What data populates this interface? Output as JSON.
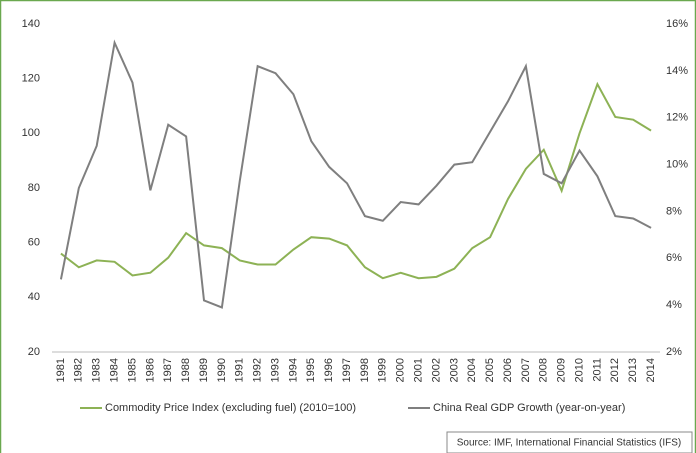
{
  "chart_data": {
    "type": "line",
    "categories": [
      "1981",
      "1982",
      "1983",
      "1984",
      "1985",
      "1986",
      "1987",
      "1988",
      "1989",
      "1990",
      "1991",
      "1992",
      "1993",
      "1994",
      "1995",
      "1996",
      "1997",
      "1998",
      "1999",
      "2000",
      "2001",
      "2002",
      "2003",
      "2004",
      "2005",
      "2006",
      "2007",
      "2008",
      "2009",
      "2010",
      "2011",
      "2012",
      "2013",
      "2014"
    ],
    "series": [
      {
        "name": "Commodity Price Index (excluding fuel) (2010=100)",
        "color": "#8db255",
        "values": [
          56,
          51,
          53.5,
          53,
          48,
          49,
          54.5,
          63.5,
          59,
          58,
          53.5,
          52,
          52,
          57.5,
          62,
          61.5,
          59,
          51,
          47,
          49,
          47,
          47.5,
          50.5,
          58,
          62,
          76,
          87,
          94,
          79,
          100,
          118,
          106,
          105,
          101
        ]
      },
      {
        "name": "China Real GDP Growth (year-on-year)",
        "color": "#7f7f7f",
        "axis": "y2",
        "values": [
          5.1,
          9.0,
          10.8,
          15.2,
          13.5,
          8.9,
          11.7,
          11.2,
          4.2,
          3.9,
          9.3,
          14.2,
          13.9,
          13.0,
          11.0,
          9.9,
          9.2,
          7.8,
          7.6,
          8.4,
          8.3,
          9.1,
          10.0,
          10.1,
          11.4,
          12.7,
          14.2,
          9.6,
          9.2,
          10.6,
          9.5,
          7.8,
          7.7,
          7.3
        ]
      }
    ],
    "ylim": [
      20,
      140
    ],
    "yticks": [
      20,
      40,
      60,
      80,
      100,
      120,
      140
    ],
    "y2lim": [
      2,
      16
    ],
    "y2ticks": [
      {
        "value": 2,
        "label": "2%"
      },
      {
        "value": 4,
        "label": "4%"
      },
      {
        "value": 6,
        "label": "6%"
      },
      {
        "value": 8,
        "label": "8%"
      },
      {
        "value": 10,
        "label": "10%"
      },
      {
        "value": 12,
        "label": "12%"
      },
      {
        "value": 14,
        "label": "14%"
      },
      {
        "value": 16,
        "label": "16%"
      }
    ],
    "legend": "bottom",
    "source": "Source: IMF, International Financial Statistics (IFS)"
  }
}
